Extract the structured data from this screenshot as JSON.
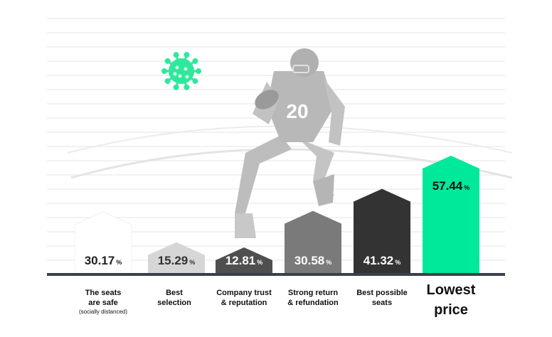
{
  "chart_data": {
    "type": "bar",
    "categories": [
      "The seats are safe",
      "Best selection",
      "Company trust & reputation",
      "Strong return & refundation",
      "Best possible seats",
      "Lowest price"
    ],
    "category_lines": [
      [
        "The seats",
        "are safe"
      ],
      [
        "Best",
        "selection"
      ],
      [
        "Company trust",
        "& reputation"
      ],
      [
        "Strong return",
        "& refundation"
      ],
      [
        "Best possible",
        "seats"
      ],
      [
        "Lowest",
        "price"
      ]
    ],
    "category_notes": [
      "(socially distanced)",
      "",
      "",
      "",
      "",
      ""
    ],
    "values": [
      30.17,
      15.29,
      12.81,
      30.58,
      41.32,
      57.44
    ],
    "value_labels": [
      "30.17",
      "15.29",
      "12.81",
      "30.58",
      "41.32",
      "57.44"
    ],
    "unit": "%",
    "bar_colors": [
      "#ffffff",
      "#d6d6d6",
      "#4f4f4f",
      "#7a7a7a",
      "#333333",
      "#00e89a"
    ],
    "label_colors": [
      "#222222",
      "#333333",
      "#ffffff",
      "#ffffff",
      "#ffffff",
      "#111111"
    ],
    "highlight_index": 5,
    "grid": true,
    "legend": "none",
    "title": "",
    "xlabel": "",
    "ylabel": ""
  },
  "decor": {
    "jersey_number": "20",
    "virus_icon": "virus-icon",
    "virus_color": "#2ee89c",
    "player_icon": "football-player-illustration"
  }
}
